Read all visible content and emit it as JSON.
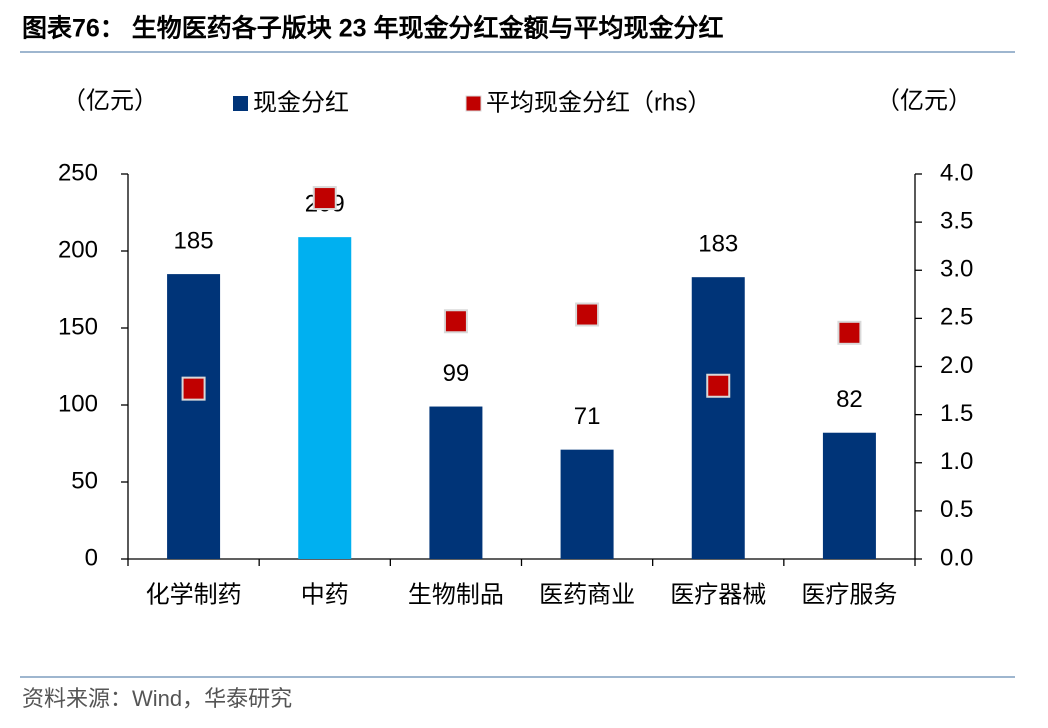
{
  "chart_data": {
    "type": "bar_scatter",
    "title": "图表76： 生物医药各子版块 23 年现金分红金额与平均现金分红",
    "y_label": "（亿元）",
    "y2_label": "（亿元）",
    "source": "资料来源：Wind，华泰研究",
    "categories": [
      "化学制药",
      "中药",
      "生物制品",
      "医药商业",
      "医疗器械",
      "医疗服务"
    ],
    "series": [
      {
        "name": "现金分红",
        "color": "#003478",
        "colors": [
          "#003478",
          "#00b0f0",
          "#003478",
          "#003478",
          "#003478",
          "#003478"
        ],
        "values": [
          185,
          209,
          99,
          71,
          183,
          82
        ]
      },
      {
        "name": "平均现金分红（rhs）",
        "color": "#c00000",
        "axis": "y2",
        "values": [
          1.77,
          3.75,
          2.47,
          2.54,
          1.8,
          2.35
        ]
      }
    ],
    "ylim": [
      0,
      250
    ],
    "yticks": [
      0,
      50,
      100,
      150,
      200,
      250
    ],
    "y2lim": [
      0,
      4
    ],
    "y2ticks": [
      {
        "value": 0,
        "label": "0.0"
      },
      0.5,
      {
        "value": 1,
        "label": "1.0"
      },
      1.5,
      {
        "value": 2,
        "label": "2.0"
      },
      2.5,
      {
        "value": 3,
        "label": "3.0"
      },
      3.5,
      {
        "value": 4,
        "label": "4.0"
      }
    ]
  }
}
